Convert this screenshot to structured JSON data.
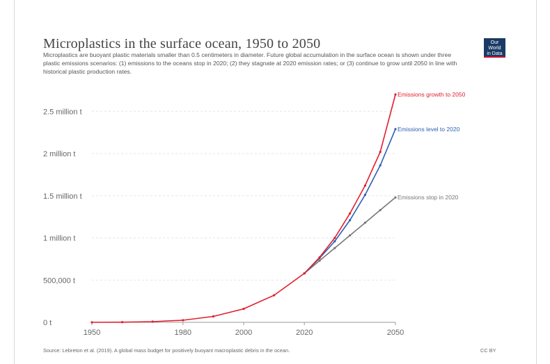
{
  "title": "Microplastics in the surface ocean, 1950 to 2050",
  "subtitle": "Microplastics are buoyant plastic materials smaller than 0.5 centimeters in diameter. Future global accumulation in the surface ocean is shown under three plastic emissions scenarios: (1) emissions to the oceans stop in 2020; (2) they stagnate at 2020 emission rates; or (3) continue to grow until 2050 in line with historical plastic production rates.",
  "logo": {
    "line1": "Our World",
    "line2": "in Data"
  },
  "source": "Source: Lebreton et al. (2019). A global mass budget for positively buoyant macroplastic debris in the ocean.",
  "license": "CC BY",
  "colors": {
    "growth": "#e01e2e",
    "level": "#2c5fb3",
    "stop": "#777777",
    "grid": "#e6e6e6",
    "axis": "#999999"
  },
  "chart_data": {
    "type": "line",
    "xlim": [
      1950,
      2050
    ],
    "ylim": [
      0,
      2700000
    ],
    "x_ticks": [
      1950,
      1980,
      2000,
      2020,
      2050
    ],
    "y_ticks": [
      {
        "value": 0,
        "label": "0 t"
      },
      {
        "value": 500000,
        "label": "500,000 t"
      },
      {
        "value": 1000000,
        "label": "1 million t"
      },
      {
        "value": 1500000,
        "label": "1.5 million t"
      },
      {
        "value": 2000000,
        "label": "2 million t"
      },
      {
        "value": 2500000,
        "label": "2.5 million t"
      }
    ],
    "grid": true,
    "series": [
      {
        "name": "Emissions growth to 2050",
        "color": "#e01e2e",
        "x": [
          1950,
          1960,
          1970,
          1980,
          1990,
          2000,
          2010,
          2020,
          2025,
          2030,
          2035,
          2040,
          2045,
          2050
        ],
        "y": [
          0,
          2000,
          8000,
          25000,
          70000,
          160000,
          320000,
          580000,
          770000,
          1000000,
          1290000,
          1620000,
          2020000,
          2700000
        ]
      },
      {
        "name": "Emissions level to 2020",
        "color": "#2c5fb3",
        "x": [
          2020,
          2025,
          2030,
          2035,
          2040,
          2045,
          2050
        ],
        "y": [
          580000,
          760000,
          960000,
          1210000,
          1510000,
          1860000,
          2290000
        ]
      },
      {
        "name": "Emissions stop in 2020",
        "color": "#777777",
        "x": [
          2020,
          2025,
          2030,
          2035,
          2040,
          2045,
          2050
        ],
        "y": [
          580000,
          730000,
          880000,
          1030000,
          1180000,
          1330000,
          1480000
        ]
      }
    ]
  }
}
